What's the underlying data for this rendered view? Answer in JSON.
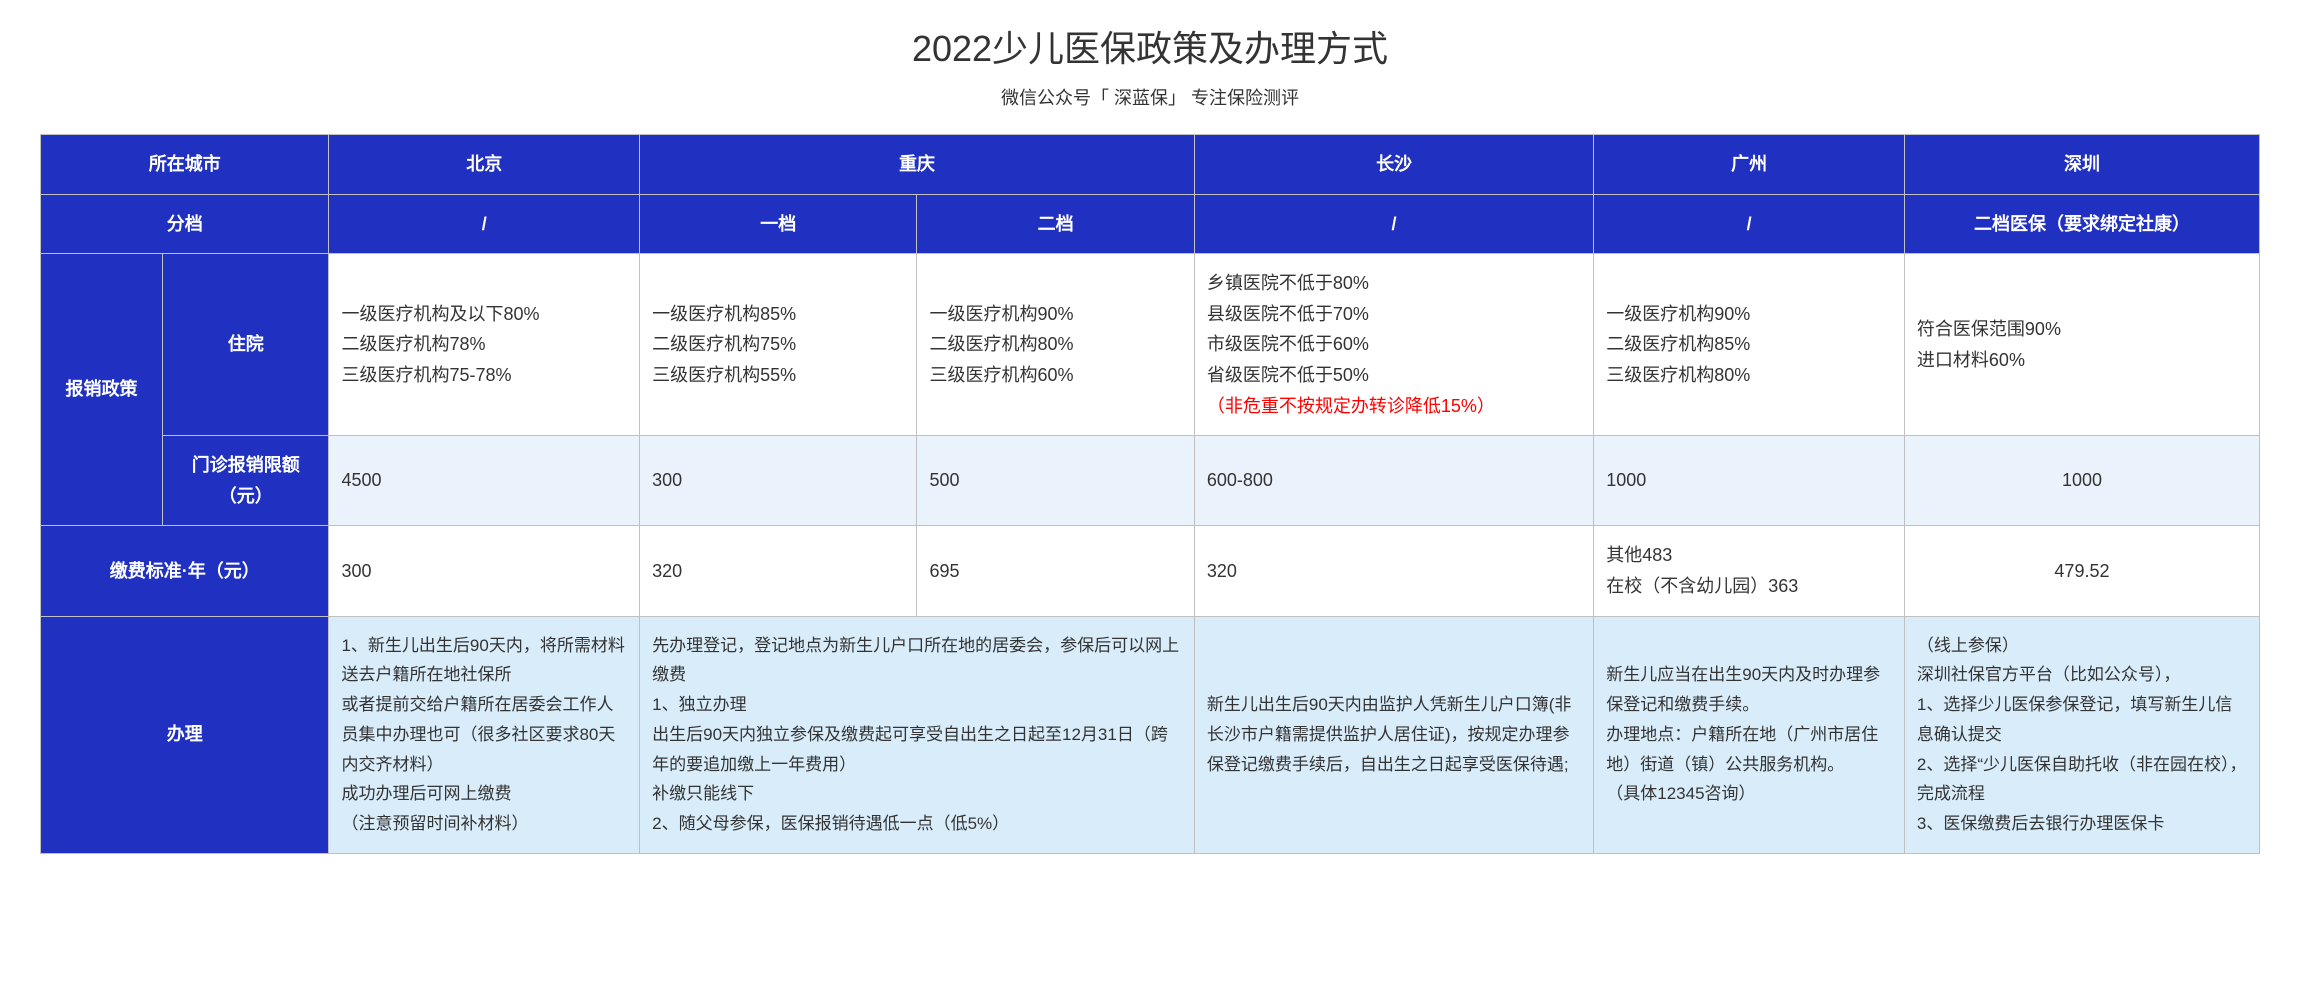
{
  "title": "2022少儿医保政策及办理方式",
  "subtitle": "微信公众号「 深蓝保」 专注保险测评",
  "headers": {
    "city": "所在城市",
    "tier": "分档",
    "policy": "报销政策",
    "inpatient": "住院",
    "outpatient_cap": "门诊报销限额（元）",
    "fee": "缴费标准·年（元）",
    "process": "办理"
  },
  "cities": {
    "beijing": "北京",
    "chongqing": "重庆",
    "changsha": "长沙",
    "guangzhou": "广州",
    "shenzhen": "深圳"
  },
  "tiers": {
    "beijing": "/",
    "cq_t1": "一档",
    "cq_t2": "二档",
    "changsha": "/",
    "guangzhou": "/",
    "shenzhen": "二档医保（要求绑定社康）"
  },
  "inpatient": {
    "beijing": "一级医疗机构及以下80%\n二级医疗机构78%\n三级医疗机构75-78%",
    "cq_t1": "一级医疗机构85%\n二级医疗机构75%\n三级医疗机构55%",
    "cq_t2": "一级医疗机构90%\n二级医疗机构80%\n三级医疗机构60%",
    "changsha_main": "乡镇医院不低于80%\n县级医院不低于70%\n市级医院不低于60%\n省级医院不低于50%",
    "changsha_note": "（非危重不按规定办转诊降低15%）",
    "guangzhou": "一级医疗机构90%\n二级医疗机构85%\n三级医疗机构80%",
    "shenzhen": "符合医保范围90%\n进口材料60%"
  },
  "outpatient": {
    "beijing": "4500",
    "cq_t1": "300",
    "cq_t2": "500",
    "changsha": "600-800",
    "guangzhou": "1000",
    "shenzhen": "1000"
  },
  "fee": {
    "beijing": "300",
    "cq_t1": "320",
    "cq_t2": "695",
    "changsha": "320",
    "guangzhou": "其他483\n在校（不含幼儿园）363",
    "shenzhen": "479.52"
  },
  "process": {
    "beijing": "1、新生儿出生后90天内，将所需材料送去户籍所在地社保所\n或者提前交给户籍所在居委会工作人员集中办理也可（很多社区要求80天内交齐材料）\n成功办理后可网上缴费\n （注意预留时间补材料）",
    "chongqing": "先办理登记，登记地点为新生儿户口所在地的居委会，参保后可以网上缴费\n1、独立办理\n出生后90天内独立参保及缴费起可享受自出生之日起至12月31日（跨年的要追加缴上一年费用）\n补缴只能线下\n2、随父母参保，医保报销待遇低一点（低5%）",
    "changsha": "新生儿出生后90天内由监护人凭新生儿户口簿(非长沙市户籍需提供监护人居住证)，按规定办理参保登记缴费手续后，自出生之日起享受医保待遇;",
    "guangzhou": "新生儿应当在出生90天内及时办理参保登记和缴费手续。\n办理地点：户籍所在地（广州市居住地）街道（镇）公共服务机构。\n（具体12345咨询）",
    "shenzhen": "（线上参保）\n深圳社保官方平台（比如公众号），\n1、选择少儿医保参保登记，填写新生儿信息确认提交\n2、选择“少儿医保自助托收（非在园在校），完成流程\n3、医保缴费后去银行办理医保卡"
  }
}
